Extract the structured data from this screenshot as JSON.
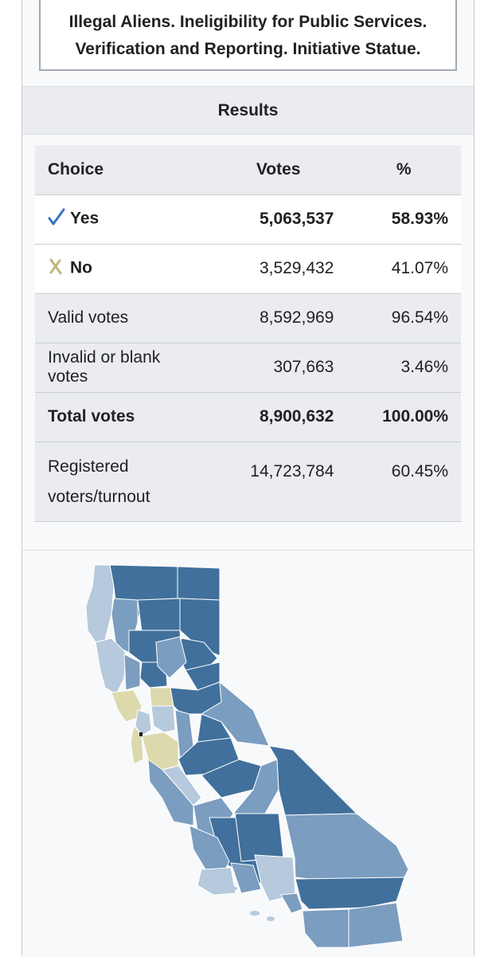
{
  "title": "Illegal Aliens. Ineligibility for Public Services. Verification and Reporting. Initiative Statue.",
  "results_header": "Results",
  "table": {
    "headers": {
      "choice": "Choice",
      "votes": "Votes",
      "pct": "%"
    },
    "rows": [
      {
        "choice": "Yes",
        "votes": "5,063,537",
        "pct": "58.93%",
        "icon": "checkmark-icon"
      },
      {
        "choice": "No",
        "votes": "3,529,432",
        "pct": "41.07%",
        "icon": "cross-icon"
      },
      {
        "choice": "Valid votes",
        "votes": "8,592,969",
        "pct": "96.54%"
      },
      {
        "choice": "Invalid or blank votes",
        "votes": "307,663",
        "pct": "3.46%"
      },
      {
        "choice": "Total votes",
        "votes": "8,900,632",
        "pct": "100.00%"
      },
      {
        "choice": "Registered voters/turnout",
        "votes": "14,723,784",
        "pct": "60.45%"
      }
    ]
  },
  "colors": {
    "yes_strong": "#41709c",
    "yes_medium": "#7b9dbf",
    "yes_light": "#b6c9dd",
    "no_light": "#dcd9ad",
    "check": "#3a72c4",
    "cross": "#bdb77e"
  }
}
